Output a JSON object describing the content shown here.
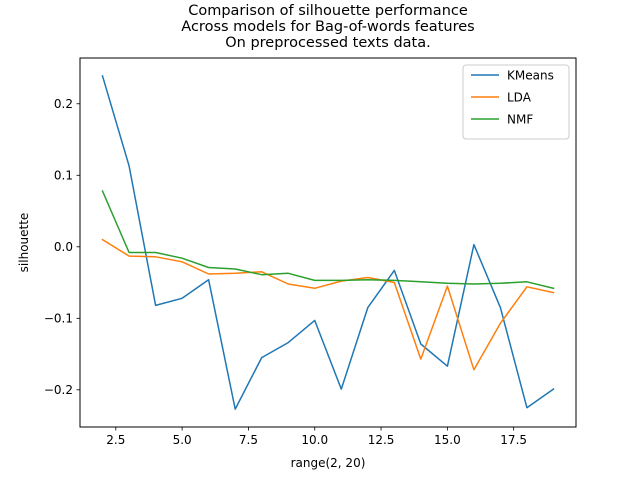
{
  "chart_data": {
    "type": "line",
    "title_lines": [
      "Comparison of silhouette performance",
      "Across models for Bag-of-words features",
      "On preprocessed texts data."
    ],
    "xlabel": "range(2, 20)",
    "ylabel": "silhouette",
    "xlim": [
      1.15,
      19.85
    ],
    "ylim": [
      -0.252,
      0.264
    ],
    "xticks": [
      2.5,
      5.0,
      7.5,
      10.0,
      12.5,
      15.0,
      17.5
    ],
    "xtick_labels": [
      "2.5",
      "5.0",
      "7.5",
      "10.0",
      "12.5",
      "15.0",
      "17.5"
    ],
    "yticks": [
      -0.2,
      -0.1,
      0.0,
      0.1,
      0.2
    ],
    "ytick_labels": [
      "−0.2",
      "−0.1",
      "0.0",
      "0.1",
      "0.2"
    ],
    "grid": false,
    "legend_position": "upper right",
    "x": [
      2,
      3,
      4,
      5,
      6,
      7,
      8,
      9,
      10,
      11,
      12,
      13,
      14,
      15,
      16,
      17,
      18,
      19
    ],
    "series": [
      {
        "name": "KMeans",
        "color": "#1f77b4",
        "values": [
          0.239,
          0.113,
          -0.082,
          -0.072,
          -0.046,
          -0.227,
          -0.155,
          -0.134,
          -0.103,
          -0.199,
          -0.085,
          -0.033,
          -0.136,
          -0.167,
          0.003,
          -0.085,
          -0.225,
          -0.199
        ]
      },
      {
        "name": "LDA",
        "color": "#ff7f0e",
        "values": [
          0.01,
          -0.013,
          -0.014,
          -0.021,
          -0.038,
          -0.037,
          -0.035,
          -0.052,
          -0.058,
          -0.048,
          -0.043,
          -0.05,
          -0.157,
          -0.055,
          -0.172,
          -0.107,
          -0.056,
          -0.064
        ]
      },
      {
        "name": "NMF",
        "color": "#2ca02c",
        "values": [
          0.078,
          -0.008,
          -0.008,
          -0.016,
          -0.029,
          -0.031,
          -0.039,
          -0.037,
          -0.047,
          -0.047,
          -0.046,
          -0.047,
          -0.049,
          -0.051,
          -0.052,
          -0.051,
          -0.049,
          -0.058
        ]
      }
    ]
  }
}
